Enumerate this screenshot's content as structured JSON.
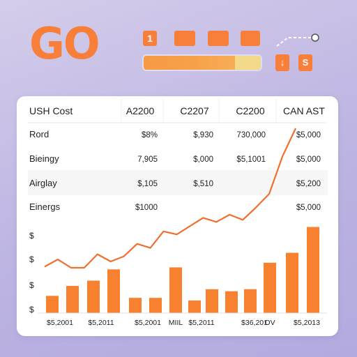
{
  "header": {
    "logo_text": "GO",
    "pills": [
      "1",
      "",
      "",
      ""
    ],
    "progress": 0.78,
    "controls": [
      "↓",
      "S"
    ]
  },
  "colors": {
    "accent": "#f77f3a",
    "line": "#f06f2e",
    "bars": "#f7812e",
    "progress_bg": "#f3d98a"
  },
  "icons": [
    "connector-path-icon",
    "arrow-down-icon",
    "dollar-icon"
  ],
  "chart_data": {
    "type": "table",
    "table": {
      "columns": [
        "USH Cost",
        "A2200",
        "C2207",
        "C2200",
        "CAN AST"
      ],
      "rows": [
        [
          "Rord",
          "$8%",
          "$,930",
          "730,000",
          "$5,000"
        ],
        [
          "Bieingy",
          "7,905",
          "$,000",
          "$5,1001",
          "$5,000"
        ],
        [
          "Airglay",
          "$,105",
          "$,510",
          "",
          "$5,200"
        ],
        [
          "Einergs",
          "$1000",
          "",
          "",
          "$5,000"
        ]
      ]
    },
    "y_tick_labels": [
      "$",
      "$",
      "$",
      "$"
    ],
    "x_tick_labels": [
      "$5,2001",
      "$5,2011",
      "$5,2001",
      "MIIL",
      "$5,2011",
      "$36,201",
      "OV",
      "$5,2013"
    ],
    "line": {
      "x": [
        0,
        1,
        2,
        3,
        4,
        5,
        6,
        7,
        8,
        9,
        10,
        11,
        12,
        13,
        14,
        15,
        16,
        17,
        18,
        19
      ],
      "y": [
        1.9,
        2.6,
        1.8,
        1.8,
        3.1,
        2.4,
        2.9,
        4.1,
        3.7,
        5.3,
        5.0,
        5.8,
        6.6,
        6.2,
        6.9,
        6.4,
        7.6,
        8.9,
        12.5,
        15.2
      ],
      "ylim": [
        0,
        16
      ]
    },
    "bars": {
      "values": [
        2.6,
        4.1,
        4.9,
        6.6,
        2.3,
        2.3,
        6.9,
        1.9,
        3.6,
        3.3,
        3.6,
        7.6,
        9.1,
        13.0
      ],
      "ylim": [
        0,
        14
      ]
    }
  }
}
